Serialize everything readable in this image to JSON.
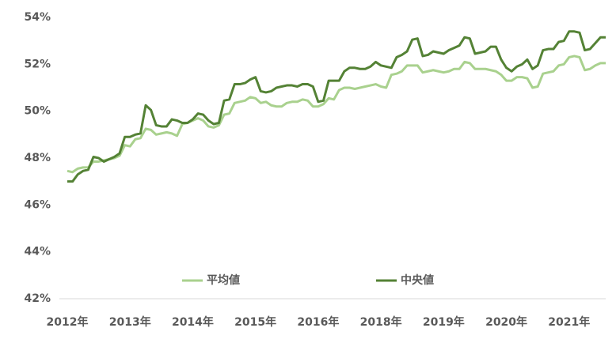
{
  "chart_data": {
    "type": "line",
    "categories": [
      "2012年",
      null,
      null,
      null,
      null,
      null,
      null,
      null,
      null,
      null,
      null,
      null,
      "2013年",
      null,
      null,
      null,
      null,
      null,
      null,
      null,
      null,
      null,
      null,
      null,
      "2014年",
      null,
      null,
      null,
      null,
      null,
      null,
      null,
      null,
      null,
      null,
      null,
      "2015年",
      null,
      null,
      null,
      null,
      null,
      null,
      null,
      null,
      null,
      null,
      null,
      "2016年",
      null,
      null,
      null,
      null,
      null,
      null,
      null,
      null,
      null,
      null,
      null,
      "2018年",
      null,
      null,
      null,
      null,
      null,
      null,
      null,
      null,
      null,
      null,
      null,
      "2019年",
      null,
      null,
      null,
      null,
      null,
      null,
      null,
      null,
      null,
      null,
      null,
      "2020年",
      null,
      null,
      null,
      null,
      null,
      null,
      null,
      null,
      null,
      null,
      null,
      "2021年",
      null,
      null,
      null,
      null,
      null,
      null,
      null
    ],
    "series": [
      {
        "name": "平均値",
        "color": "#a9d18e",
        "values": [
          47.45,
          47.4,
          47.55,
          47.6,
          47.6,
          47.85,
          47.85,
          47.9,
          47.95,
          48.0,
          48.1,
          48.55,
          48.5,
          48.8,
          48.85,
          49.25,
          49.2,
          49.0,
          49.05,
          49.1,
          49.05,
          48.95,
          49.45,
          49.5,
          49.6,
          49.7,
          49.6,
          49.35,
          49.3,
          49.4,
          49.85,
          49.9,
          50.35,
          50.4,
          50.45,
          50.6,
          50.55,
          50.35,
          50.4,
          50.25,
          50.2,
          50.2,
          50.35,
          50.4,
          50.4,
          50.5,
          50.45,
          50.2,
          50.2,
          50.3,
          50.55,
          50.5,
          50.9,
          51.0,
          51.0,
          50.95,
          51.0,
          51.05,
          51.1,
          51.15,
          51.05,
          51.0,
          51.55,
          51.6,
          51.7,
          51.95,
          51.95,
          51.95,
          51.65,
          51.7,
          51.75,
          51.7,
          51.65,
          51.7,
          51.8,
          51.8,
          52.1,
          52.05,
          51.8,
          51.8,
          51.8,
          51.75,
          51.7,
          51.55,
          51.3,
          51.3,
          51.45,
          51.45,
          51.4,
          51.0,
          51.05,
          51.6,
          51.65,
          51.7,
          51.95,
          52.0,
          52.3,
          52.35,
          52.3,
          51.75,
          51.8,
          51.95,
          52.05,
          52.05
        ]
      },
      {
        "name": "中央値",
        "color": "#548235",
        "values": [
          47.0,
          47.0,
          47.3,
          47.45,
          47.5,
          48.05,
          48.0,
          47.85,
          47.95,
          48.05,
          48.2,
          48.9,
          48.9,
          49.0,
          49.05,
          50.25,
          50.05,
          49.4,
          49.35,
          49.35,
          49.65,
          49.6,
          49.5,
          49.5,
          49.65,
          49.9,
          49.85,
          49.6,
          49.45,
          49.5,
          50.45,
          50.5,
          51.15,
          51.15,
          51.2,
          51.35,
          51.45,
          50.85,
          50.8,
          50.85,
          51.0,
          51.05,
          51.1,
          51.1,
          51.05,
          51.15,
          51.15,
          51.05,
          50.4,
          50.45,
          51.3,
          51.3,
          51.3,
          51.7,
          51.85,
          51.85,
          51.8,
          51.8,
          51.9,
          52.1,
          51.95,
          51.9,
          51.85,
          52.3,
          52.4,
          52.55,
          53.05,
          53.1,
          52.35,
          52.4,
          52.55,
          52.5,
          52.45,
          52.6,
          52.7,
          52.8,
          53.15,
          53.1,
          52.45,
          52.5,
          52.55,
          52.75,
          52.75,
          52.2,
          51.85,
          51.7,
          51.9,
          52.0,
          52.2,
          51.8,
          51.95,
          52.6,
          52.65,
          52.65,
          52.95,
          53.0,
          53.4,
          53.4,
          53.35,
          52.6,
          52.65,
          52.9,
          53.15,
          53.15
        ]
      }
    ],
    "ylim": [
      42,
      54
    ],
    "yticks": [
      {
        "value": 42,
        "label": "42%"
      },
      {
        "value": 44,
        "label": "44%"
      },
      {
        "value": 46,
        "label": "46%"
      },
      {
        "value": 48,
        "label": "48%"
      },
      {
        "value": 50,
        "label": "50%"
      },
      {
        "value": 52,
        "label": "52%"
      },
      {
        "value": 54,
        "label": "54%"
      }
    ],
    "grid": false,
    "legend": "bottom"
  }
}
